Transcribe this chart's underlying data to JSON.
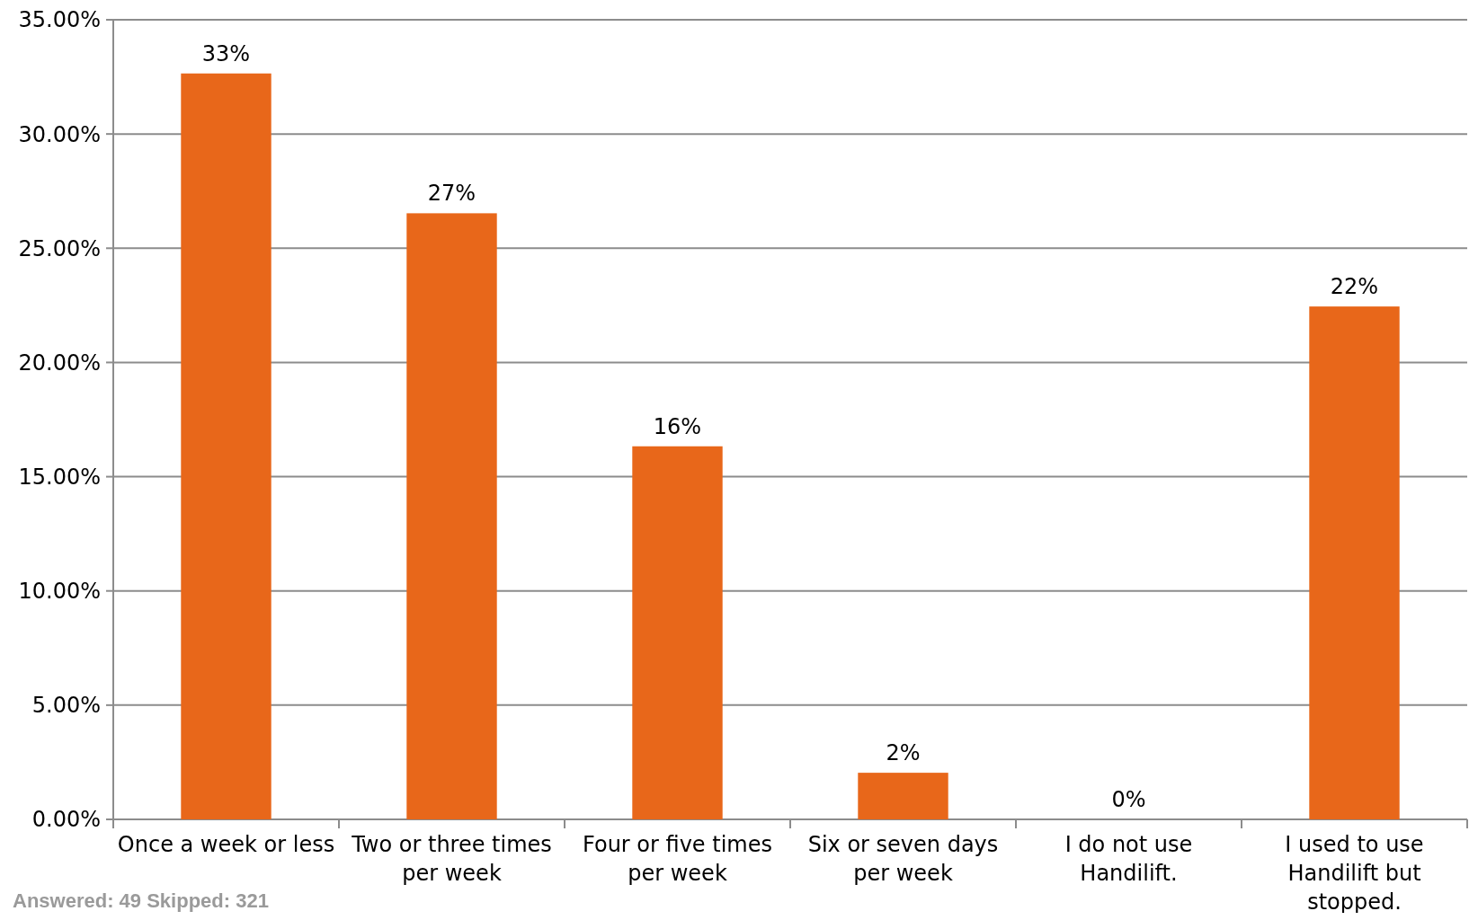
{
  "chart_data": {
    "type": "bar",
    "categories": [
      "Once a week or less",
      "Two or three times per week",
      "Four or five times per week",
      "Six or seven days per week",
      "I do not use Handilift.",
      "I used to use Handilift but stopped."
    ],
    "values": [
      32.65,
      26.53,
      16.33,
      2.04,
      0,
      22.45
    ],
    "value_labels": [
      "33%",
      "27%",
      "16%",
      "2%",
      "0%",
      "22%"
    ],
    "color": "#e8671a",
    "ylim": [
      0,
      35
    ],
    "yticks": [
      {
        "value": 0,
        "label": "0.00%"
      },
      {
        "value": 5,
        "label": "5.00%"
      },
      {
        "value": 10,
        "label": "10.00%"
      },
      {
        "value": 15,
        "label": "15.00%"
      },
      {
        "value": 20,
        "label": "20.00%"
      },
      {
        "value": 25,
        "label": "25.00%"
      },
      {
        "value": 30,
        "label": "30.00%"
      },
      {
        "value": 35,
        "label": "35.00%"
      }
    ],
    "grid": "y",
    "annotations": [
      "Answered: 49  Skipped: 321"
    ]
  }
}
